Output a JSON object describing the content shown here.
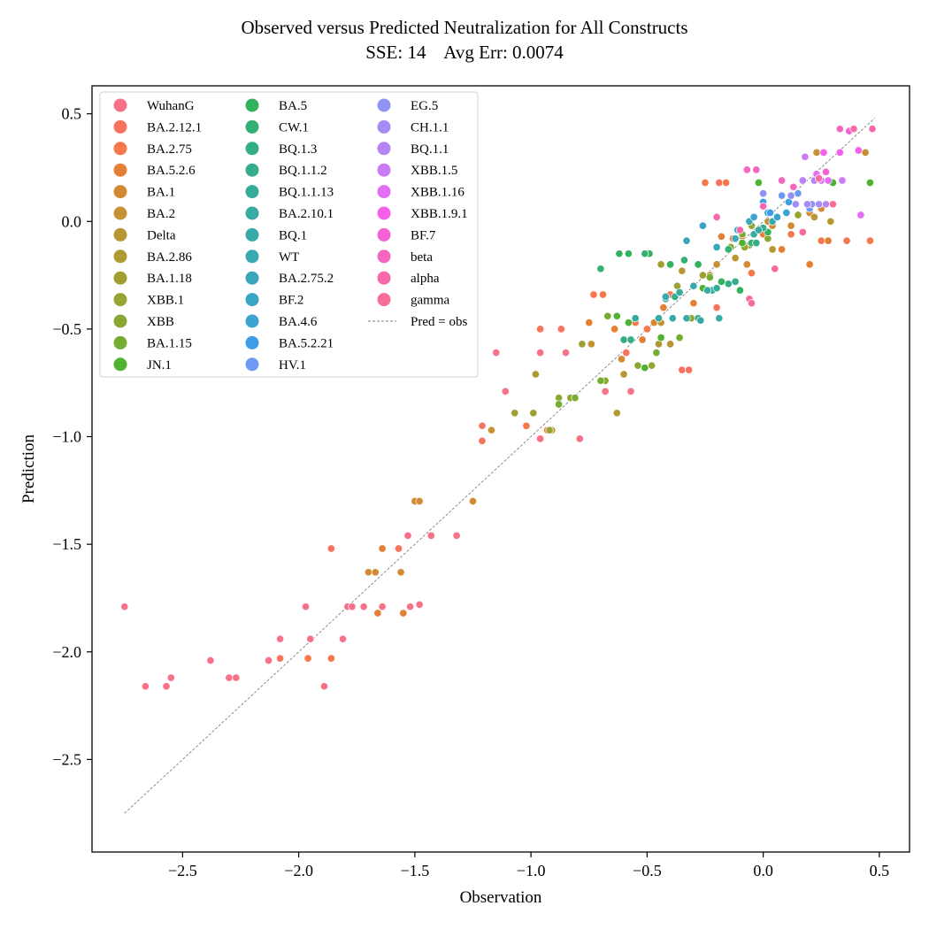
{
  "chart_data": {
    "type": "scatter",
    "title": "Observed versus Predicted Neutralization for All Constructs",
    "subtitle": "SSE: 14    Avg Err: 0.0074",
    "xlabel": "Observation",
    "ylabel": "Prediction",
    "xlim": [
      -2.89,
      0.63
    ],
    "ylim": [
      -2.93,
      0.63
    ],
    "x_ticks": [
      -2.5,
      -2.0,
      -1.5,
      -1.0,
      -0.5,
      0.0,
      0.5
    ],
    "y_ticks": [
      -2.5,
      -2.0,
      -1.5,
      -1.0,
      -0.5,
      0.0,
      0.5
    ],
    "x_tick_labels": [
      "−2.5",
      "−2.0",
      "−1.5",
      "−1.0",
      "−0.5",
      "0.0",
      "0.5"
    ],
    "y_tick_labels": [
      "−2.5",
      "−2.0",
      "−1.5",
      "−1.0",
      "−0.5",
      "0.0",
      "0.5"
    ],
    "grid": false,
    "legend_position": "top-left",
    "legend_columns": 3,
    "reference_line": {
      "name": "Pred = obs",
      "x": [
        -2.75,
        0.48
      ],
      "y": [
        -2.75,
        0.48
      ],
      "color": "#808080"
    },
    "series": [
      {
        "name": "WuhanG",
        "color": "#f77189"
      },
      {
        "name": "BA.2.12.1",
        "color": "#f7745f"
      },
      {
        "name": "BA.2.75",
        "color": "#f5774a"
      },
      {
        "name": "BA.5.2.6",
        "color": "#e48034"
      },
      {
        "name": "BA.1",
        "color": "#d38a32"
      },
      {
        "name": "BA.2",
        "color": "#c59132"
      },
      {
        "name": "Delta",
        "color": "#b89632"
      },
      {
        "name": "BA.2.86",
        "color": "#ad9b32"
      },
      {
        "name": "BA.1.18",
        "color": "#a29f32"
      },
      {
        "name": "XBB.1",
        "color": "#97a432"
      },
      {
        "name": "XBB",
        "color": "#89a832"
      },
      {
        "name": "BA.1.15",
        "color": "#74ad32"
      },
      {
        "name": "JN.1",
        "color": "#4fb232"
      },
      {
        "name": "BA.5",
        "color": "#33b25d"
      },
      {
        "name": "CW.1",
        "color": "#34b074"
      },
      {
        "name": "BQ.1.3",
        "color": "#35ae84"
      },
      {
        "name": "BQ.1.1.2",
        "color": "#36ad8f"
      },
      {
        "name": "BQ.1.1.13",
        "color": "#36ab98"
      },
      {
        "name": "BA.2.10.1",
        "color": "#37aaa1"
      },
      {
        "name": "BQ.1",
        "color": "#37a9a9"
      },
      {
        "name": "WT",
        "color": "#38a8b1"
      },
      {
        "name": "BA.2.75.2",
        "color": "#39a6ba"
      },
      {
        "name": "BF.2",
        "color": "#3aa4c4"
      },
      {
        "name": "BA.4.6",
        "color": "#3ba2d2"
      },
      {
        "name": "BA.5.2.21",
        "color": "#3d9ee7"
      },
      {
        "name": "HV.1",
        "color": "#6e9af4"
      },
      {
        "name": "EG.5",
        "color": "#8f94f4"
      },
      {
        "name": "CH.1.1",
        "color": "#a58cf4"
      },
      {
        "name": "BQ.1.1",
        "color": "#b685f4"
      },
      {
        "name": "XBB.1.5",
        "color": "#cb7bf4"
      },
      {
        "name": "XBB.1.16",
        "color": "#e26ef4"
      },
      {
        "name": "XBB.1.9.1",
        "color": "#f460ea"
      },
      {
        "name": "BF.7",
        "color": "#f562d4"
      },
      {
        "name": "beta",
        "color": "#f667bf"
      },
      {
        "name": "alpha",
        "color": "#f66aac"
      },
      {
        "name": "gamma",
        "color": "#f76d98"
      }
    ],
    "points": [
      [
        -2.75,
        -1.79,
        "WuhanG"
      ],
      [
        -2.66,
        -2.16,
        "WuhanG"
      ],
      [
        -2.57,
        -2.16,
        "WuhanG"
      ],
      [
        -2.55,
        -2.12,
        "WuhanG"
      ],
      [
        -2.38,
        -2.04,
        "WuhanG"
      ],
      [
        -2.3,
        -2.12,
        "WuhanG"
      ],
      [
        -2.27,
        -2.12,
        "WuhanG"
      ],
      [
        -2.13,
        -2.04,
        "WuhanG"
      ],
      [
        -2.08,
        -1.94,
        "WuhanG"
      ],
      [
        -1.97,
        -1.79,
        "WuhanG"
      ],
      [
        -1.95,
        -1.94,
        "WuhanG"
      ],
      [
        -1.89,
        -2.16,
        "WuhanG"
      ],
      [
        -1.81,
        -1.94,
        "WuhanG"
      ],
      [
        -1.79,
        -1.79,
        "WuhanG"
      ],
      [
        -1.77,
        -1.79,
        "WuhanG"
      ],
      [
        -1.72,
        -1.79,
        "WuhanG"
      ],
      [
        -1.64,
        -1.79,
        "WuhanG"
      ],
      [
        -1.53,
        -1.46,
        "WuhanG"
      ],
      [
        -1.52,
        -1.79,
        "WuhanG"
      ],
      [
        -1.48,
        -1.78,
        "WuhanG"
      ],
      [
        -1.43,
        -1.46,
        "WuhanG"
      ],
      [
        -1.32,
        -1.46,
        "WuhanG"
      ],
      [
        -1.15,
        -0.61,
        "WuhanG"
      ],
      [
        -1.11,
        -0.79,
        "WuhanG"
      ],
      [
        -0.96,
        -1.01,
        "WuhanG"
      ],
      [
        -0.96,
        -0.61,
        "WuhanG"
      ],
      [
        -0.85,
        -0.61,
        "WuhanG"
      ],
      [
        -0.79,
        -1.01,
        "WuhanG"
      ],
      [
        -0.68,
        -0.79,
        "WuhanG"
      ],
      [
        -0.57,
        -0.79,
        "WuhanG"
      ],
      [
        -2.08,
        -2.03,
        "BA.2.12.1"
      ],
      [
        -1.96,
        -2.03,
        "BA.2.12.1"
      ],
      [
        -1.86,
        -1.52,
        "BA.2.12.1"
      ],
      [
        -1.66,
        -1.82,
        "BA.2.12.1"
      ],
      [
        -1.57,
        -1.52,
        "BA.2.12.1"
      ],
      [
        -1.21,
        -0.95,
        "BA.2.12.1"
      ],
      [
        -1.21,
        -1.02,
        "BA.2.12.1"
      ],
      [
        -0.96,
        -0.5,
        "BA.2.12.1"
      ],
      [
        -0.87,
        -0.5,
        "BA.2.12.1"
      ],
      [
        -0.59,
        -0.61,
        "BA.2.12.1"
      ],
      [
        -0.35,
        -0.69,
        "BA.2.12.1"
      ],
      [
        -0.32,
        -0.69,
        "BA.2.12.1"
      ],
      [
        -0.2,
        -0.4,
        "BA.2.12.1"
      ],
      [
        -0.19,
        0.18,
        "BA.2.12.1"
      ],
      [
        -1.96,
        -2.03,
        "BA.2.75"
      ],
      [
        -1.86,
        -2.03,
        "BA.2.75"
      ],
      [
        -1.02,
        -0.95,
        "BA.2.75"
      ],
      [
        -0.93,
        -0.97,
        "BA.2.75"
      ],
      [
        -0.73,
        -0.34,
        "BA.2.75"
      ],
      [
        -0.69,
        -0.34,
        "BA.2.75"
      ],
      [
        -0.55,
        -0.47,
        "BA.2.75"
      ],
      [
        -0.5,
        -0.5,
        "BA.2.75"
      ],
      [
        -0.4,
        -0.34,
        "BA.2.75"
      ],
      [
        -0.25,
        0.18,
        "BA.2.75"
      ],
      [
        -0.16,
        0.18,
        "BA.2.75"
      ],
      [
        -0.13,
        -0.08,
        "BA.2.75"
      ],
      [
        -0.05,
        -0.24,
        "BA.2.75"
      ],
      [
        0.02,
        0.04,
        "BA.2.75"
      ],
      [
        0.12,
        -0.06,
        "BA.2.75"
      ],
      [
        0.25,
        -0.09,
        "BA.2.75"
      ],
      [
        0.36,
        -0.09,
        "BA.2.75"
      ],
      [
        0.46,
        -0.09,
        "BA.2.75"
      ],
      [
        -1.66,
        -1.82,
        "BA.5.2.6"
      ],
      [
        -1.64,
        -1.52,
        "BA.5.2.6"
      ],
      [
        -1.55,
        -1.82,
        "BA.5.2.6"
      ],
      [
        -0.75,
        -0.47,
        "BA.5.2.6"
      ],
      [
        -0.64,
        -0.5,
        "BA.5.2.6"
      ],
      [
        -0.52,
        -0.55,
        "BA.5.2.6"
      ],
      [
        -0.43,
        -0.4,
        "BA.5.2.6"
      ],
      [
        -0.3,
        -0.38,
        "BA.5.2.6"
      ],
      [
        -0.18,
        -0.07,
        "BA.5.2.6"
      ],
      [
        -0.09,
        -0.07,
        "BA.5.2.6"
      ],
      [
        0.0,
        -0.06,
        "BA.5.2.6"
      ],
      [
        0.08,
        -0.13,
        "BA.5.2.6"
      ],
      [
        0.2,
        -0.2,
        "BA.5.2.6"
      ],
      [
        0.28,
        -0.09,
        "BA.5.2.6"
      ],
      [
        -1.7,
        -1.63,
        "BA.1"
      ],
      [
        -1.67,
        -1.63,
        "BA.1"
      ],
      [
        -1.56,
        -1.63,
        "BA.1"
      ],
      [
        -1.5,
        -1.3,
        "BA.1"
      ],
      [
        -1.48,
        -1.3,
        "BA.1"
      ],
      [
        -1.25,
        -1.3,
        "BA.1"
      ],
      [
        -0.61,
        -0.64,
        "BA.1"
      ],
      [
        -0.47,
        -0.47,
        "BA.1"
      ],
      [
        -0.28,
        -0.2,
        "BA.1"
      ],
      [
        -0.07,
        -0.2,
        "BA.1"
      ],
      [
        0.04,
        -0.02,
        "BA.1"
      ],
      [
        0.12,
        -0.02,
        "BA.1"
      ],
      [
        0.2,
        0.04,
        "BA.1"
      ],
      [
        0.25,
        0.06,
        "BA.1"
      ],
      [
        -1.17,
        -0.97,
        "BA.2"
      ],
      [
        -0.91,
        -0.97,
        "BA.2"
      ],
      [
        -0.74,
        -0.57,
        "BA.2"
      ],
      [
        -0.44,
        -0.47,
        "BA.2"
      ],
      [
        -0.2,
        -0.2,
        "BA.2"
      ],
      [
        0.02,
        0.0,
        "BA.2"
      ],
      [
        0.23,
        0.32,
        "BA.2"
      ],
      [
        0.33,
        0.32,
        "BA.2"
      ],
      [
        0.44,
        0.32,
        "BA.2"
      ],
      [
        -0.6,
        -0.71,
        "Delta"
      ],
      [
        -0.4,
        -0.57,
        "Delta"
      ],
      [
        -0.35,
        -0.23,
        "Delta"
      ],
      [
        -0.12,
        -0.17,
        "Delta"
      ],
      [
        0.04,
        -0.13,
        "Delta"
      ],
      [
        0.22,
        0.02,
        "Delta"
      ],
      [
        0.29,
        0.0,
        "Delta"
      ],
      [
        -0.98,
        -0.71,
        "BA.2.86"
      ],
      [
        -0.63,
        -0.89,
        "BA.2.86"
      ],
      [
        -0.45,
        -0.57,
        "BA.2.86"
      ],
      [
        -0.23,
        -0.25,
        "BA.2.86"
      ],
      [
        -0.06,
        -0.11,
        "BA.2.86"
      ],
      [
        -1.07,
        -0.89,
        "BA.1.18"
      ],
      [
        -0.99,
        -0.89,
        "BA.1.18"
      ],
      [
        -0.78,
        -0.57,
        "BA.1.18"
      ],
      [
        -0.44,
        -0.2,
        "BA.1.18"
      ],
      [
        -0.26,
        -0.25,
        "BA.1.18"
      ],
      [
        -0.92,
        -0.97,
        "XBB.1"
      ],
      [
        -0.83,
        -0.82,
        "XBB.1"
      ],
      [
        -0.48,
        -0.67,
        "XBB.1"
      ],
      [
        -0.37,
        -0.3,
        "XBB.1"
      ],
      [
        -0.08,
        -0.12,
        "XBB.1"
      ],
      [
        -0.05,
        -0.02,
        "XBB.1"
      ],
      [
        0.15,
        0.03,
        "XBB.1"
      ],
      [
        -0.88,
        -0.82,
        "XBB"
      ],
      [
        -0.68,
        -0.74,
        "XBB"
      ],
      [
        -0.54,
        -0.67,
        "XBB"
      ],
      [
        -0.31,
        -0.45,
        "XBB"
      ],
      [
        -0.14,
        -0.12,
        "XBB"
      ],
      [
        0.02,
        -0.08,
        "XBB"
      ],
      [
        -0.88,
        -0.85,
        "BA.1.15"
      ],
      [
        -0.81,
        -0.82,
        "BA.1.15"
      ],
      [
        -0.7,
        -0.74,
        "BA.1.15"
      ],
      [
        -0.67,
        -0.44,
        "BA.1.15"
      ],
      [
        -0.46,
        -0.61,
        "BA.1.15"
      ],
      [
        -0.36,
        -0.54,
        "BA.1.15"
      ],
      [
        -0.23,
        -0.26,
        "BA.1.15"
      ],
      [
        -0.09,
        -0.06,
        "BA.1.15"
      ],
      [
        -0.63,
        -0.44,
        "JN.1"
      ],
      [
        -0.58,
        -0.47,
        "JN.1"
      ],
      [
        -0.51,
        -0.68,
        "JN.1"
      ],
      [
        -0.44,
        -0.54,
        "JN.1"
      ],
      [
        -0.26,
        -0.31,
        "JN.1"
      ],
      [
        -0.09,
        -0.1,
        "JN.1"
      ],
      [
        -0.02,
        0.18,
        "JN.1"
      ],
      [
        0.3,
        0.18,
        "JN.1"
      ],
      [
        0.46,
        0.18,
        "JN.1"
      ],
      [
        -0.62,
        -0.15,
        "BA.5"
      ],
      [
        -0.58,
        -0.15,
        "BA.5"
      ],
      [
        -0.49,
        -0.15,
        "BA.5"
      ],
      [
        -0.4,
        -0.2,
        "BA.5"
      ],
      [
        -0.28,
        -0.2,
        "BA.5"
      ],
      [
        -0.18,
        -0.28,
        "BA.5"
      ],
      [
        -0.1,
        -0.32,
        "BA.5"
      ],
      [
        0.02,
        -0.05,
        "BA.5"
      ],
      [
        -0.7,
        -0.22,
        "CW.1"
      ],
      [
        -0.51,
        -0.15,
        "CW.1"
      ],
      [
        -0.34,
        -0.18,
        "CW.1"
      ],
      [
        -0.15,
        -0.13,
        "CW.1"
      ],
      [
        -0.05,
        -0.1,
        "CW.1"
      ],
      [
        -0.6,
        -0.55,
        "BQ.1.3"
      ],
      [
        -0.42,
        -0.36,
        "BQ.1.3"
      ],
      [
        -0.28,
        -0.45,
        "BQ.1.3"
      ],
      [
        -0.15,
        -0.29,
        "BQ.1.3"
      ],
      [
        -0.03,
        -0.1,
        "BQ.1.3"
      ],
      [
        -0.57,
        -0.55,
        "BQ.1.1.2"
      ],
      [
        -0.38,
        -0.35,
        "BQ.1.1.2"
      ],
      [
        -0.22,
        -0.32,
        "BQ.1.1.2"
      ],
      [
        -0.12,
        -0.28,
        "BQ.1.1.2"
      ],
      [
        0.0,
        -0.03,
        "BQ.1.1.2"
      ],
      [
        -0.55,
        -0.45,
        "BQ.1.1.13"
      ],
      [
        -0.36,
        -0.33,
        "BQ.1.1.13"
      ],
      [
        -0.2,
        -0.31,
        "BQ.1.1.13"
      ],
      [
        -0.04,
        -0.06,
        "BQ.1.1.13"
      ],
      [
        -0.45,
        -0.45,
        "BA.2.10.1"
      ],
      [
        -0.33,
        -0.45,
        "BA.2.10.1"
      ],
      [
        -0.24,
        -0.32,
        "BA.2.10.1"
      ],
      [
        -0.02,
        -0.04,
        "BA.2.10.1"
      ],
      [
        -0.39,
        -0.45,
        "BQ.1"
      ],
      [
        -0.27,
        -0.46,
        "BQ.1"
      ],
      [
        -0.19,
        -0.45,
        "BQ.1"
      ],
      [
        0.04,
        0.0,
        "BQ.1"
      ],
      [
        -0.42,
        -0.35,
        "WT"
      ],
      [
        -0.3,
        -0.3,
        "WT"
      ],
      [
        -0.12,
        -0.08,
        "WT"
      ],
      [
        0.06,
        0.02,
        "WT"
      ],
      [
        -0.33,
        -0.09,
        "BA.2.75.2"
      ],
      [
        -0.2,
        -0.12,
        "BA.2.75.2"
      ],
      [
        -0.06,
        0.0,
        "BA.2.75.2"
      ],
      [
        -0.26,
        -0.02,
        "BF.2"
      ],
      [
        -0.11,
        -0.04,
        "BF.2"
      ],
      [
        0.02,
        0.04,
        "BF.2"
      ],
      [
        -0.04,
        0.02,
        "BA.4.6"
      ],
      [
        0.06,
        0.02,
        "BA.4.6"
      ],
      [
        0.1,
        0.04,
        "BA.4.6"
      ],
      [
        0.0,
        0.09,
        "BA.5.2.21"
      ],
      [
        0.03,
        0.04,
        "BA.5.2.21"
      ],
      [
        0.11,
        0.09,
        "BA.5.2.21"
      ],
      [
        0.08,
        0.12,
        "HV.1"
      ],
      [
        0.15,
        0.13,
        "HV.1"
      ],
      [
        0.2,
        0.06,
        "HV.1"
      ],
      [
        0.0,
        0.13,
        "EG.5"
      ],
      [
        0.12,
        0.12,
        "EG.5"
      ],
      [
        0.21,
        0.08,
        "EG.5"
      ],
      [
        0.14,
        0.08,
        "CH.1.1"
      ],
      [
        0.19,
        0.08,
        "CH.1.1"
      ],
      [
        0.24,
        0.08,
        "CH.1.1"
      ],
      [
        0.17,
        0.19,
        "BQ.1.1"
      ],
      [
        0.22,
        0.19,
        "BQ.1.1"
      ],
      [
        0.27,
        0.08,
        "BQ.1.1"
      ],
      [
        0.18,
        0.3,
        "XBB.1.5"
      ],
      [
        0.25,
        0.19,
        "XBB.1.5"
      ],
      [
        0.34,
        0.19,
        "XBB.1.5"
      ],
      [
        0.23,
        0.22,
        "XBB.1.16"
      ],
      [
        0.28,
        0.19,
        "XBB.1.16"
      ],
      [
        0.42,
        0.03,
        "XBB.1.16"
      ],
      [
        0.26,
        0.32,
        "XBB.1.9.1"
      ],
      [
        0.33,
        0.32,
        "XBB.1.9.1"
      ],
      [
        0.41,
        0.33,
        "XBB.1.9.1"
      ],
      [
        0.27,
        0.23,
        "BF.7"
      ],
      [
        0.37,
        0.42,
        "BF.7"
      ],
      [
        -0.07,
        0.24,
        "beta"
      ],
      [
        -0.03,
        0.24,
        "beta"
      ],
      [
        0.08,
        0.19,
        "beta"
      ],
      [
        0.13,
        0.16,
        "beta"
      ],
      [
        0.33,
        0.43,
        "beta"
      ],
      [
        -0.2,
        0.02,
        "alpha"
      ],
      [
        -0.1,
        -0.04,
        "alpha"
      ],
      [
        0.0,
        0.07,
        "alpha"
      ],
      [
        0.24,
        0.2,
        "alpha"
      ],
      [
        0.39,
        0.43,
        "alpha"
      ],
      [
        0.47,
        0.43,
        "alpha"
      ],
      [
        -0.06,
        -0.36,
        "gamma"
      ],
      [
        -0.05,
        -0.38,
        "gamma"
      ],
      [
        0.05,
        -0.22,
        "gamma"
      ],
      [
        0.17,
        -0.05,
        "gamma"
      ],
      [
        0.3,
        0.08,
        "gamma"
      ]
    ]
  }
}
